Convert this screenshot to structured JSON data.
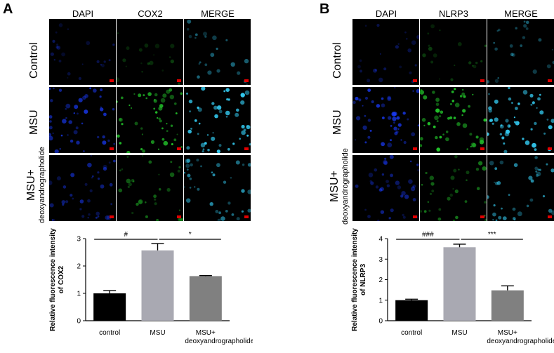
{
  "panels": [
    {
      "letter": "A",
      "columns": [
        "DAPI",
        "COX2",
        "MERGE"
      ],
      "rows": [
        {
          "label": "Control",
          "sub": ""
        },
        {
          "label": "MSU",
          "sub": ""
        },
        {
          "label": "MSU+",
          "sub": "deoxyandrographolide"
        }
      ]
    },
    {
      "letter": "B",
      "columns": [
        "DAPI",
        "NLRP3",
        "MERGE"
      ],
      "rows": [
        {
          "label": "Control",
          "sub": ""
        },
        {
          "label": "MSU",
          "sub": ""
        },
        {
          "label": "MSU+",
          "sub": "deoxyandrographolide"
        }
      ]
    }
  ],
  "colors": {
    "dapi": "#1a3cff",
    "stain": "#22c22a",
    "merge": "#33c8ee",
    "scale_bar": "#e00000"
  },
  "chart_data": [
    {
      "type": "bar",
      "categories": [
        "control",
        "MSU",
        "MSU+\ndeoxyandrographolide"
      ],
      "values": [
        1.0,
        2.57,
        1.63
      ],
      "errors": [
        0.1,
        0.25,
        0.02
      ],
      "colors": [
        "#000000",
        "#a9a9b2",
        "#808080"
      ],
      "ylabel": "Relative fluorescence intensity\nof COX2",
      "ylim": [
        0,
        3
      ],
      "yticks": [
        0,
        1,
        2,
        3
      ],
      "significance": [
        {
          "from": 0,
          "to": 1,
          "label": "#"
        },
        {
          "from": 1,
          "to": 2,
          "label": "*"
        }
      ]
    },
    {
      "type": "bar",
      "categories": [
        "control",
        "MSU",
        "MSU+\ndeoxyandrographolide"
      ],
      "values": [
        1.0,
        3.58,
        1.48
      ],
      "errors": [
        0.05,
        0.15,
        0.22
      ],
      "colors": [
        "#000000",
        "#a9a9b2",
        "#808080"
      ],
      "ylabel": "Relative fluorescence intensity\nof NLRP3",
      "ylim": [
        0,
        4
      ],
      "yticks": [
        0,
        1,
        2,
        3,
        4
      ],
      "significance": [
        {
          "from": 0,
          "to": 1,
          "label": "###"
        },
        {
          "from": 1,
          "to": 2,
          "label": "***"
        }
      ]
    }
  ]
}
